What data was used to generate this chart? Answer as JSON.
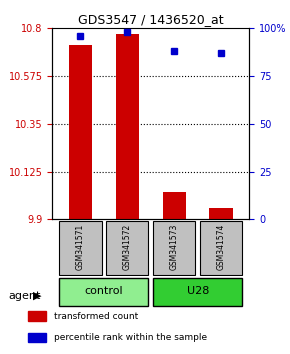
{
  "title": "GDS3547 / 1436520_at",
  "samples": [
    "GSM341571",
    "GSM341572",
    "GSM341573",
    "GSM341574"
  ],
  "bar_values": [
    10.72,
    10.775,
    10.03,
    9.955
  ],
  "percentile_values": [
    96,
    98,
    88,
    87
  ],
  "y_min": 9.9,
  "y_max": 10.8,
  "y_ticks": [
    9.9,
    10.125,
    10.35,
    10.575,
    10.8
  ],
  "y_tick_labels": [
    "9.9",
    "10.125",
    "10.35",
    "10.575",
    "10.8"
  ],
  "right_y_ticks": [
    0,
    25,
    50,
    75,
    100
  ],
  "right_y_labels": [
    "0",
    "25",
    "50",
    "75",
    "100%"
  ],
  "groups": [
    {
      "label": "control",
      "samples": [
        0,
        1
      ],
      "color": "#90EE90"
    },
    {
      "label": "U28",
      "samples": [
        2,
        3
      ],
      "color": "#32CD32"
    }
  ],
  "agent_label": "agent",
  "bar_color": "#CC0000",
  "percentile_color": "#0000CC",
  "sample_box_color": "#C0C0C0",
  "legend_items": [
    {
      "color": "#CC0000",
      "label": "transformed count"
    },
    {
      "color": "#0000CC",
      "label": "percentile rank within the sample"
    }
  ]
}
